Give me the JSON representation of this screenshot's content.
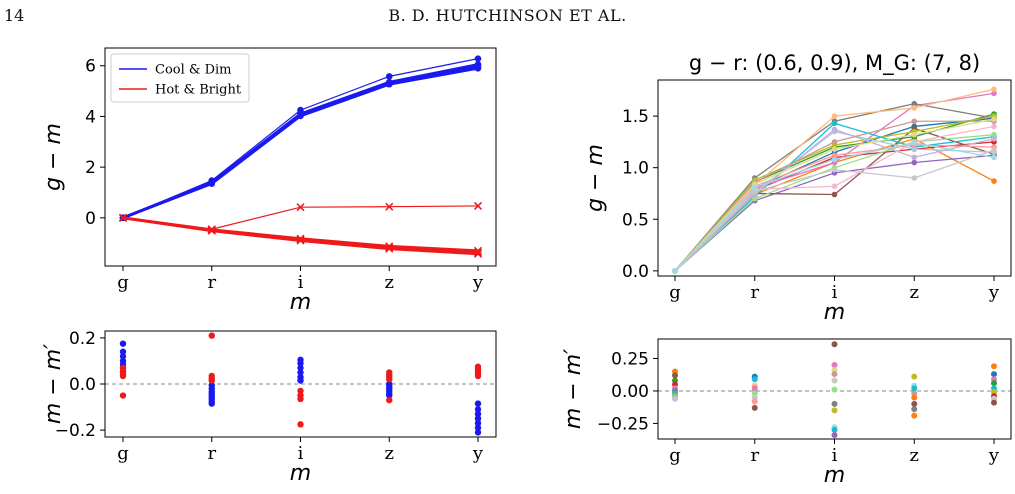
{
  "header": {
    "page_number": "14",
    "running_head": "B. D. HUTCHINSON ET AL."
  },
  "chart_data": [
    {
      "panel": "top-left",
      "type": "line",
      "categories": [
        "g",
        "r",
        "i",
        "z",
        "y"
      ],
      "xlabel": "m",
      "ylabel": "g − m",
      "ylim": [
        -1.9,
        6.7
      ],
      "yticks": [
        0,
        2,
        4,
        6
      ],
      "legend": {
        "placement": "top-left",
        "entries": [
          {
            "label": "Cool & Dim",
            "color": "#1a1aee"
          },
          {
            "label": "Hot & Bright",
            "color": "#ee1a1a"
          }
        ]
      },
      "series": [
        {
          "group": "Cool & Dim",
          "color": "#1a1aee",
          "marker": "dot",
          "values": [
            0,
            1.47,
            4.25,
            5.58,
            6.28
          ]
        },
        {
          "group": "Cool & Dim",
          "color": "#1a1aee",
          "marker": "dot",
          "values": [
            0,
            1.4,
            4.1,
            5.35,
            6.05
          ]
        },
        {
          "group": "Cool & Dim",
          "color": "#1a1aee",
          "marker": "dot",
          "values": [
            0,
            1.37,
            4.05,
            5.3,
            5.98
          ]
        },
        {
          "group": "Cool & Dim",
          "color": "#1a1aee",
          "marker": "dot",
          "values": [
            0,
            1.35,
            4.02,
            5.27,
            5.9
          ]
        },
        {
          "group": "Hot & Bright",
          "color": "#ee1a1a",
          "marker": "x",
          "values": [
            0,
            -0.45,
            0.42,
            0.44,
            0.47
          ]
        },
        {
          "group": "Hot & Bright",
          "color": "#ee1a1a",
          "marker": "x",
          "values": [
            0,
            -0.47,
            -0.82,
            -1.12,
            -1.3
          ]
        },
        {
          "group": "Hot & Bright",
          "color": "#ee1a1a",
          "marker": "x",
          "values": [
            0,
            -0.49,
            -0.86,
            -1.18,
            -1.37
          ]
        },
        {
          "group": "Hot & Bright",
          "color": "#ee1a1a",
          "marker": "x",
          "values": [
            0,
            -0.51,
            -0.9,
            -1.22,
            -1.42
          ]
        }
      ]
    },
    {
      "panel": "bottom-left",
      "type": "scatter",
      "categories": [
        "g",
        "r",
        "i",
        "z",
        "y"
      ],
      "xlabel": "m",
      "ylabel": "m − m′",
      "ylim": [
        -0.23,
        0.23
      ],
      "yticks": [
        -0.2,
        0.0,
        0.2
      ],
      "yticklabels": [
        "−0.2",
        "0.0",
        "0.2"
      ],
      "zero_line": true,
      "series": [
        {
          "name": "Cool & Dim",
          "color": "#1a1aee",
          "points": [
            [
              0,
              0.175
            ],
            [
              0,
              0.14
            ],
            [
              0,
              0.12
            ],
            [
              0,
              0.1
            ],
            [
              0,
              0.085
            ],
            [
              0,
              0.07
            ],
            [
              0,
              0.055
            ],
            [
              1,
              -0.005
            ],
            [
              1,
              -0.02
            ],
            [
              1,
              -0.035
            ],
            [
              1,
              -0.045
            ],
            [
              1,
              -0.055
            ],
            [
              1,
              -0.065
            ],
            [
              1,
              -0.075
            ],
            [
              1,
              -0.085
            ],
            [
              2,
              0.105
            ],
            [
              2,
              0.09
            ],
            [
              2,
              0.07
            ],
            [
              2,
              0.05
            ],
            [
              2,
              0.03
            ],
            [
              2,
              0.015
            ],
            [
              3,
              0.0
            ],
            [
              3,
              -0.01
            ],
            [
              3,
              -0.02
            ],
            [
              3,
              -0.03
            ],
            [
              3,
              -0.04
            ],
            [
              3,
              -0.05
            ],
            [
              4,
              -0.085
            ],
            [
              4,
              -0.11
            ],
            [
              4,
              -0.13
            ],
            [
              4,
              -0.15
            ],
            [
              4,
              -0.17
            ],
            [
              4,
              -0.19
            ],
            [
              4,
              -0.21
            ]
          ]
        },
        {
          "name": "Hot & Bright",
          "color": "#ee1a1a",
          "points": [
            [
              0,
              0.07
            ],
            [
              0,
              0.055
            ],
            [
              0,
              0.045
            ],
            [
              0,
              0.035
            ],
            [
              0,
              -0.05
            ],
            [
              1,
              0.21
            ],
            [
              1,
              0.035
            ],
            [
              1,
              0.025
            ],
            [
              1,
              0.015
            ],
            [
              2,
              -0.03
            ],
            [
              2,
              -0.05
            ],
            [
              2,
              -0.065
            ],
            [
              2,
              -0.175
            ],
            [
              3,
              0.05
            ],
            [
              3,
              0.04
            ],
            [
              3,
              0.03
            ],
            [
              3,
              0.02
            ],
            [
              3,
              -0.07
            ],
            [
              4,
              0.075
            ],
            [
              4,
              0.065
            ],
            [
              4,
              0.055
            ],
            [
              4,
              0.045
            ],
            [
              4,
              0.035
            ]
          ]
        }
      ]
    },
    {
      "panel": "top-right",
      "type": "line",
      "title": "g − r: (0.6, 0.9), M_G: (7, 8)",
      "categories": [
        "g",
        "r",
        "i",
        "z",
        "y"
      ],
      "xlabel": "m",
      "ylabel": "g − m",
      "ylim": [
        -0.05,
        1.85
      ],
      "yticks": [
        0.0,
        0.5,
        1.0,
        1.5
      ],
      "yticklabels": [
        "0.0",
        "0.5",
        "1.0",
        "1.5"
      ],
      "series": [
        {
          "color": "#1f77b4",
          "values": [
            0,
            0.8,
            1.15,
            1.4,
            1.48
          ]
        },
        {
          "color": "#ff7f0e",
          "values": [
            0,
            0.74,
            1.05,
            1.28,
            0.87
          ]
        },
        {
          "color": "#2ca02c",
          "values": [
            0,
            0.86,
            1.2,
            1.3,
            1.52
          ]
        },
        {
          "color": "#d62728",
          "values": [
            0,
            0.78,
            1.1,
            1.18,
            1.25
          ]
        },
        {
          "color": "#9467bd",
          "values": [
            0,
            0.68,
            0.95,
            1.05,
            1.12
          ]
        },
        {
          "color": "#8c564b",
          "values": [
            0,
            0.75,
            0.74,
            1.38,
            1.13
          ]
        },
        {
          "color": "#e377c2",
          "values": [
            0,
            0.8,
            1.05,
            1.6,
            1.72
          ]
        },
        {
          "color": "#7f7f7f",
          "values": [
            0,
            0.9,
            1.45,
            1.62,
            1.48
          ]
        },
        {
          "color": "#bcbd22",
          "values": [
            0,
            0.88,
            1.22,
            1.35,
            1.5
          ]
        },
        {
          "color": "#17becf",
          "values": [
            0,
            0.72,
            1.43,
            1.2,
            1.3
          ]
        },
        {
          "color": "#aec7e8",
          "values": [
            0,
            0.76,
            1.35,
            1.18,
            1.15
          ]
        },
        {
          "color": "#ffbb78",
          "values": [
            0,
            0.83,
            1.5,
            1.58,
            1.76
          ]
        },
        {
          "color": "#98df8a",
          "values": [
            0,
            0.7,
            1.0,
            1.25,
            1.32
          ]
        },
        {
          "color": "#ff9896",
          "values": [
            0,
            0.82,
            1.12,
            1.22,
            1.2
          ]
        },
        {
          "color": "#c5b0d5",
          "values": [
            0,
            0.74,
            1.37,
            1.1,
            1.28
          ]
        },
        {
          "color": "#c49c94",
          "values": [
            0,
            0.86,
            1.25,
            1.45,
            1.45
          ]
        },
        {
          "color": "#f7b6d2",
          "values": [
            0,
            0.79,
            0.82,
            1.25,
            1.4
          ]
        },
        {
          "color": "#c7c7c7",
          "values": [
            0,
            0.77,
            0.98,
            0.9,
            1.17
          ]
        },
        {
          "color": "#dbdb8d",
          "values": [
            0,
            0.84,
            1.18,
            1.32,
            1.47
          ]
        },
        {
          "color": "#9edae5",
          "values": [
            0,
            0.81,
            1.08,
            1.24,
            1.1
          ]
        }
      ]
    },
    {
      "panel": "bottom-right",
      "type": "scatter",
      "categories": [
        "g",
        "r",
        "i",
        "z",
        "y"
      ],
      "xlabel": "m",
      "ylabel": "m − m′",
      "ylim": [
        -0.37,
        0.4
      ],
      "yticks": [
        -0.25,
        0.0,
        0.25
      ],
      "yticklabels": [
        "−0.25",
        "0.00",
        "0.25"
      ],
      "zero_line": true,
      "points": [
        [
          0,
          0.15,
          "#ff7f0e"
        ],
        [
          0,
          0.12,
          "#8c564b"
        ],
        [
          0,
          0.08,
          "#2ca02c"
        ],
        [
          0,
          0.05,
          "#d62728"
        ],
        [
          0,
          0.02,
          "#e377c2"
        ],
        [
          0,
          0.0,
          "#7f7f7f"
        ],
        [
          0,
          -0.02,
          "#17becf"
        ],
        [
          0,
          -0.04,
          "#bcbd22"
        ],
        [
          0,
          -0.06,
          "#aec7e8"
        ],
        [
          1,
          0.11,
          "#1f77b4"
        ],
        [
          1,
          0.09,
          "#17becf"
        ],
        [
          1,
          0.04,
          "#ffbb78"
        ],
        [
          1,
          0.02,
          "#e377c2"
        ],
        [
          1,
          -0.02,
          "#98df8a"
        ],
        [
          1,
          -0.05,
          "#c7c7c7"
        ],
        [
          1,
          -0.08,
          "#ff9896"
        ],
        [
          1,
          -0.13,
          "#8c564b"
        ],
        [
          2,
          0.36,
          "#8c564b"
        ],
        [
          2,
          0.2,
          "#e377c2"
        ],
        [
          2,
          0.16,
          "#dbdb8d"
        ],
        [
          2,
          0.13,
          "#c49c94"
        ],
        [
          2,
          0.08,
          "#c7c7c7"
        ],
        [
          2,
          0.01,
          "#98df8a"
        ],
        [
          2,
          -0.1,
          "#7f7f7f"
        ],
        [
          2,
          -0.15,
          "#bcbd22"
        ],
        [
          2,
          -0.28,
          "#9edae5"
        ],
        [
          2,
          -0.3,
          "#17becf"
        ],
        [
          2,
          -0.34,
          "#9467bd"
        ],
        [
          3,
          0.11,
          "#bcbd22"
        ],
        [
          3,
          0.04,
          "#9edae5"
        ],
        [
          3,
          0.02,
          "#17becf"
        ],
        [
          3,
          -0.02,
          "#c49c94"
        ],
        [
          3,
          -0.05,
          "#ff7f0e"
        ],
        [
          3,
          -0.1,
          "#8c564b"
        ],
        [
          3,
          -0.14,
          "#7f7f7f"
        ],
        [
          3,
          -0.19,
          "#ff7f0e"
        ],
        [
          4,
          0.19,
          "#ff7f0e"
        ],
        [
          4,
          0.13,
          "#1f77b4"
        ],
        [
          4,
          0.09,
          "#e377c2"
        ],
        [
          4,
          0.06,
          "#2ca02c"
        ],
        [
          4,
          0.02,
          "#17becf"
        ],
        [
          4,
          -0.01,
          "#bcbd22"
        ],
        [
          4,
          -0.04,
          "#d62728"
        ],
        [
          4,
          -0.06,
          "#c7c7c7"
        ],
        [
          4,
          -0.09,
          "#8c564b"
        ]
      ]
    }
  ]
}
